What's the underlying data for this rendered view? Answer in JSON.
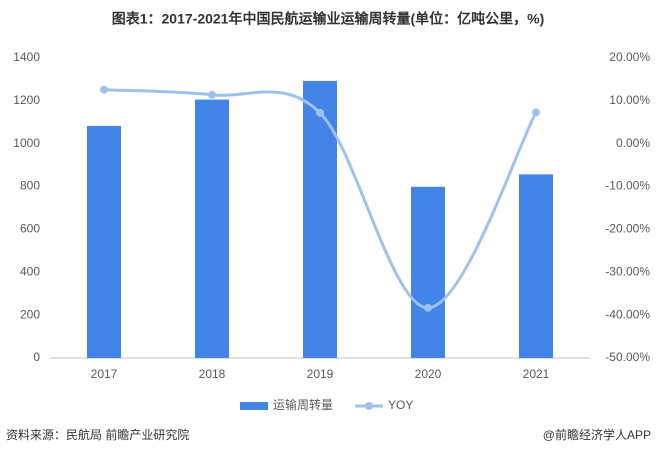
{
  "chart_data": {
    "type": "bar",
    "title": "图表1：2017-2021年中国民航运输业运输周转量(单位：亿吨公里，%)",
    "categories": [
      "2017",
      "2018",
      "2019",
      "2020",
      "2021"
    ],
    "series": [
      {
        "name": "运输周转量",
        "type": "bar",
        "color": "#4285e6",
        "values": [
          1083,
          1206,
          1293,
          799,
          857
        ]
      },
      {
        "name": "YOY",
        "type": "line",
        "axis": "y2",
        "color": "#9ec1f0",
        "values": [
          12.6,
          11.4,
          7.2,
          -38.3,
          7.3
        ]
      }
    ],
    "ylim": [
      0,
      1400
    ],
    "yticks": [
      0,
      200,
      400,
      600,
      800,
      1000,
      1200,
      1400
    ],
    "y2lim": [
      -50,
      20
    ],
    "y2ticks": [
      {
        "value": -50,
        "label": "-50.00%"
      },
      {
        "value": -40,
        "label": "-40.00%"
      },
      {
        "value": -30,
        "label": "-30.00%"
      },
      {
        "value": -20,
        "label": "-20.00%"
      },
      {
        "value": -10,
        "label": "-10.00%"
      },
      {
        "value": 0,
        "label": "0.00%"
      },
      {
        "value": 10,
        "label": "10.00%"
      },
      {
        "value": 20,
        "label": "20.00%"
      }
    ],
    "grid": false,
    "legend": "bottom",
    "source": "资料来源：民航局 前瞻产业研究院",
    "credit": "@前瞻经济学人APP"
  }
}
